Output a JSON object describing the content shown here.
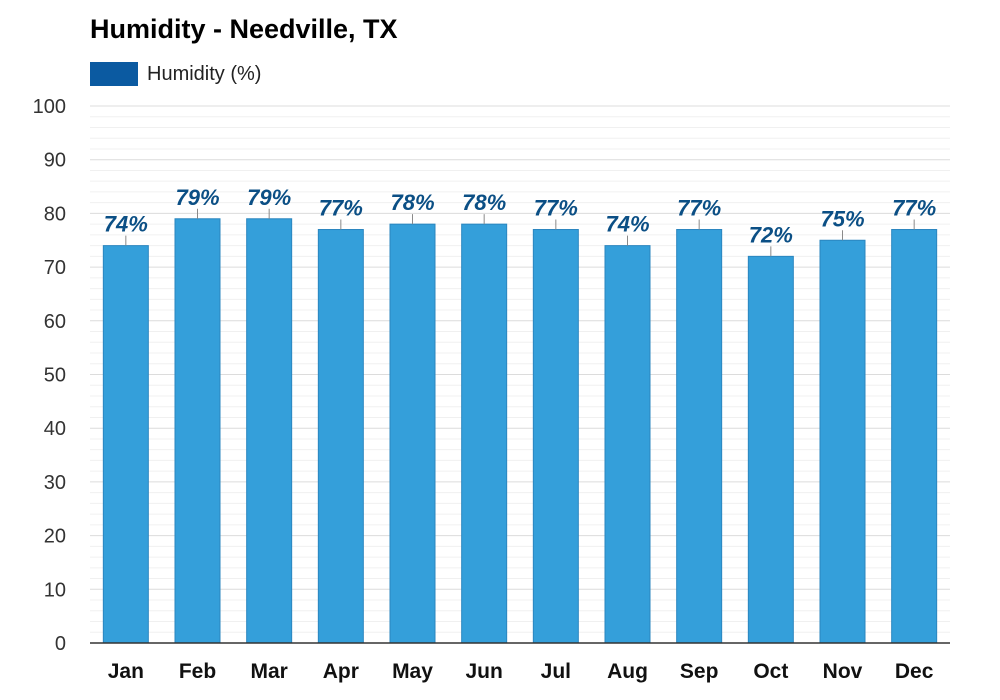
{
  "chart_data": {
    "type": "bar",
    "title": "Humidity - Needville, TX",
    "categories": [
      "Jan",
      "Feb",
      "Mar",
      "Apr",
      "May",
      "Jun",
      "Jul",
      "Aug",
      "Sep",
      "Oct",
      "Nov",
      "Dec"
    ],
    "series": [
      {
        "name": "Humidity (%)",
        "values": [
          74,
          79,
          79,
          77,
          78,
          78,
          77,
          74,
          77,
          72,
          75,
          77
        ],
        "data_labels": [
          "74%",
          "79%",
          "79%",
          "77%",
          "78%",
          "78%",
          "77%",
          "74%",
          "77%",
          "72%",
          "75%",
          "77%"
        ]
      }
    ],
    "xlabel": "",
    "ylabel": "",
    "ylim": [
      0,
      100
    ],
    "yticks": [
      0,
      10,
      20,
      30,
      40,
      50,
      60,
      70,
      80,
      90,
      100
    ],
    "grid": true,
    "legend_position": "top-left",
    "colors": {
      "bar_fill": "#349fda",
      "bar_stroke": "#2a86bf",
      "data_label": "#0b4f85",
      "legend_swatch": "#0b5aa1",
      "grid_major": "#dcdcdc",
      "grid_minor": "#f0f0f0",
      "axis": "#333333"
    }
  }
}
